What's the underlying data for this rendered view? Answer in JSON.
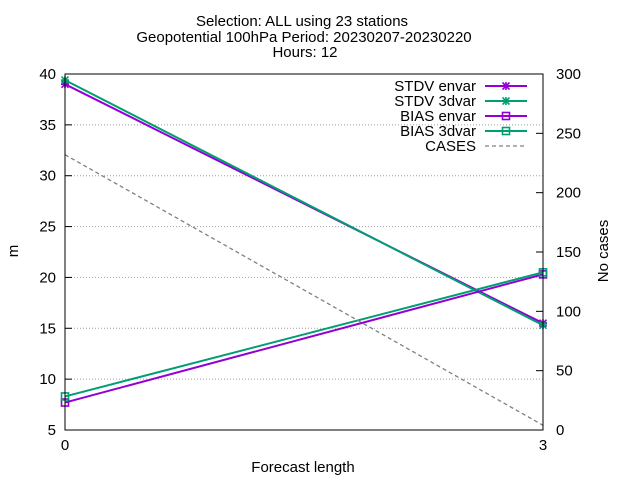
{
  "chart_data": {
    "type": "line",
    "title_lines": [
      "Selection: ALL using    23 stations",
      "Geopotential 100hPa   Period: 20230207-20230220",
      "Hours: 12"
    ],
    "xlabel": "Forecast length",
    "ylabel": "m",
    "y2label": "No cases",
    "x_ticks": [
      0,
      3
    ],
    "xlim": [
      0,
      3
    ],
    "ylim": [
      5,
      40
    ],
    "y_ticks": [
      5,
      10,
      15,
      20,
      25,
      30,
      35,
      40
    ],
    "y2lim": [
      0,
      300
    ],
    "y2_ticks": [
      0,
      50,
      100,
      150,
      200,
      250,
      300
    ],
    "grid": true,
    "legend_position": "top-right",
    "series": [
      {
        "name": "STDV envar",
        "x": [
          0,
          3
        ],
        "y": [
          39.0,
          15.5
        ],
        "color": "#9400d3",
        "marker": "x",
        "axis": "y"
      },
      {
        "name": "STDV 3dvar",
        "x": [
          0,
          3
        ],
        "y": [
          39.4,
          15.3
        ],
        "color": "#009e73",
        "marker": "x",
        "axis": "y"
      },
      {
        "name": "BIAS envar",
        "x": [
          0,
          3
        ],
        "y": [
          7.7,
          20.3
        ],
        "color": "#9400d3",
        "marker": "square",
        "axis": "y"
      },
      {
        "name": "BIAS 3dvar",
        "x": [
          0,
          3
        ],
        "y": [
          8.3,
          20.5
        ],
        "color": "#009e73",
        "marker": "square",
        "axis": "y"
      },
      {
        "name": "CASES",
        "x": [
          0,
          3
        ],
        "y": [
          232,
          4
        ],
        "color": "#808080",
        "marker": "none",
        "dashed": true,
        "axis": "y2"
      }
    ]
  }
}
